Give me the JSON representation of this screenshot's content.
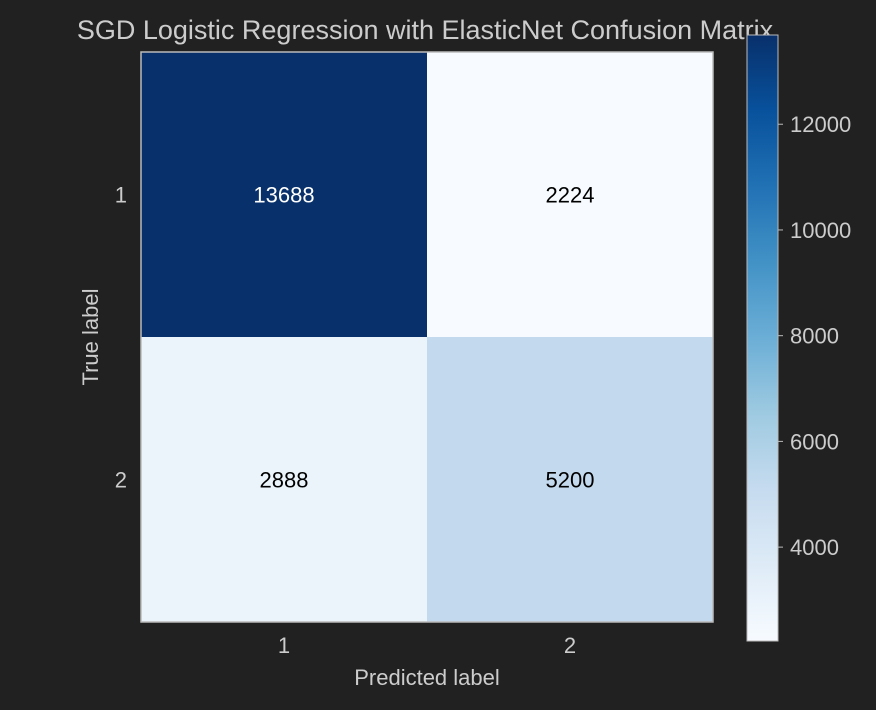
{
  "chart_data": {
    "type": "heatmap",
    "title": "SGD Logistic Regression with ElasticNet Confusion Matrix",
    "xlabel": "Predicted label",
    "ylabel": "True label",
    "x_categories": [
      "1",
      "2"
    ],
    "y_categories": [
      "1",
      "2"
    ],
    "values": [
      [
        13688,
        2224
      ],
      [
        2888,
        5200
      ]
    ],
    "colormap": "Blues",
    "colorbar": {
      "range": [
        2224,
        13688
      ],
      "ticks": [
        4000,
        6000,
        8000,
        10000,
        12000
      ],
      "tick_labels": [
        "4000",
        "6000",
        "8000",
        "10000",
        "12000"
      ]
    },
    "grid": false
  },
  "colors": {
    "background": "#212121",
    "text": "#cccccc",
    "axes_edge": "#bbbbbb",
    "cell_text_dark": "#000000",
    "cell_text_light": "#ffffff"
  }
}
